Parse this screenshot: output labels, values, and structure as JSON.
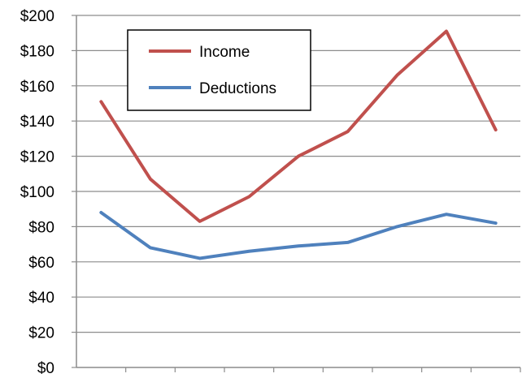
{
  "chart_data": {
    "type": "line",
    "x": [
      1,
      2,
      3,
      4,
      5,
      6,
      7,
      8,
      9
    ],
    "series": [
      {
        "name": "Income",
        "color": "#c0504d",
        "values": [
          151,
          107,
          83,
          97,
          120,
          134,
          166,
          191,
          135
        ]
      },
      {
        "name": "Deductions",
        "color": "#4f81bd",
        "values": [
          88,
          68,
          62,
          66,
          69,
          71,
          80,
          87,
          82
        ]
      }
    ],
    "title": "",
    "xlabel": "",
    "ylabel": "",
    "ylim": [
      0,
      200
    ],
    "y_ticks": [
      0,
      20,
      40,
      60,
      80,
      100,
      120,
      140,
      160,
      180,
      200
    ],
    "y_tick_labels": [
      "$0",
      "$20",
      "$40",
      "$60",
      "$80",
      "$100",
      "$120",
      "$140",
      "$160",
      "$180",
      "$200"
    ],
    "grid": true,
    "legend_position": "top-left"
  }
}
